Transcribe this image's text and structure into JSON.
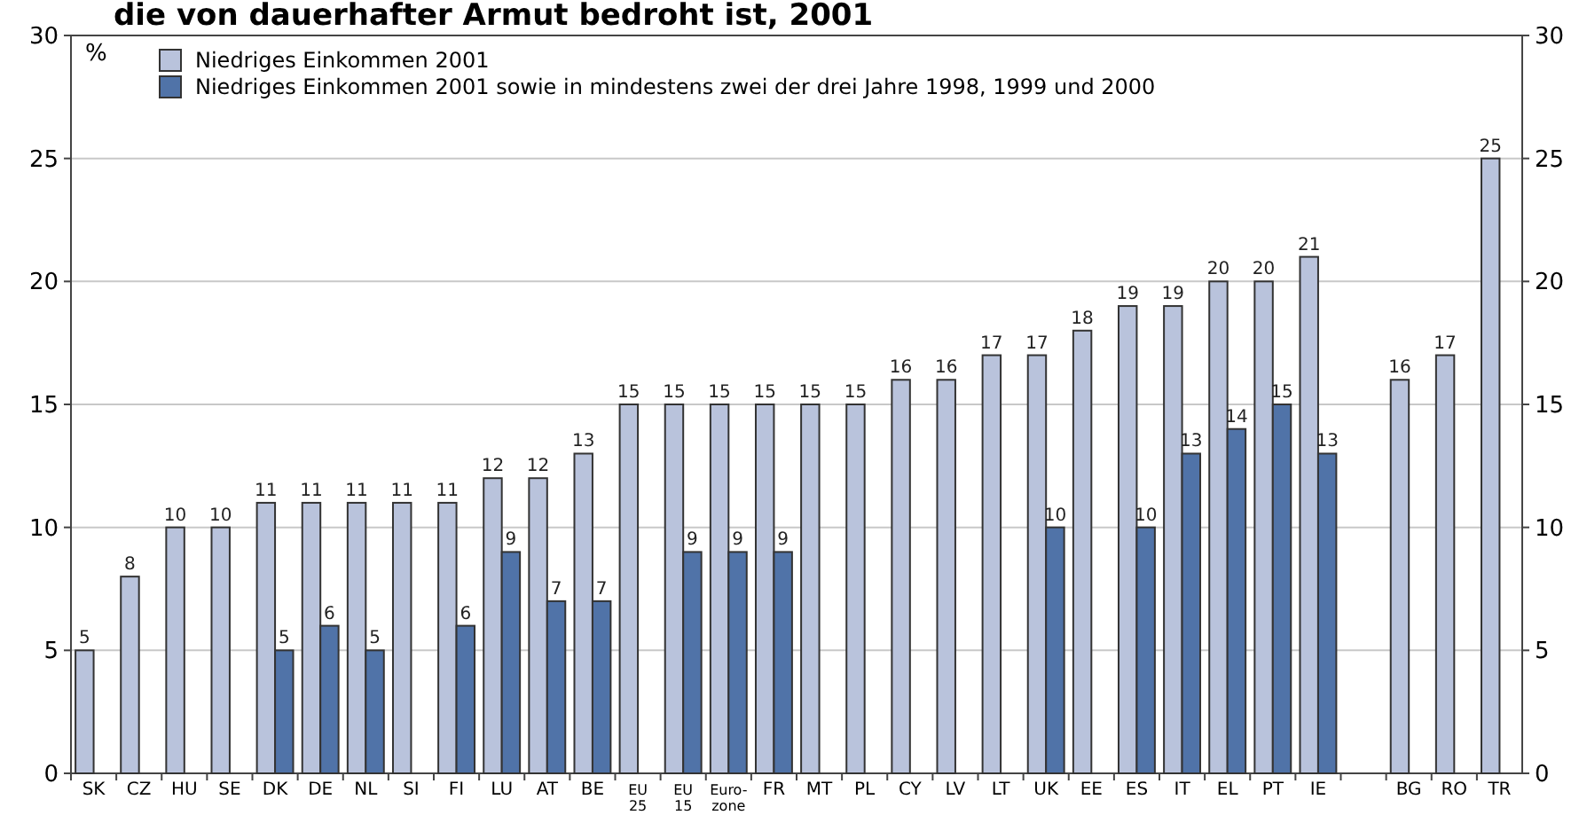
{
  "chart_data": {
    "type": "bar",
    "title": "die von dauerhafter Armut bedroht ist, 2001",
    "ylabel": "%",
    "categories": [
      "SK",
      "CZ",
      "HU",
      "SE",
      "DK",
      "DE",
      "NL",
      "SI",
      "FI",
      "LU",
      "AT",
      "BE",
      "EU 25",
      "EU 15",
      "Euro-zone",
      "FR",
      "MT",
      "PL",
      "CY",
      "LV",
      "LT",
      "UK",
      "EE",
      "ES",
      "IT",
      "EL",
      "PT",
      "IE",
      null,
      "BG",
      "RO",
      "TR"
    ],
    "series": [
      {
        "name": "Niedriges Einkommen 2001",
        "color": "#b9c3dc",
        "values": [
          5,
          8,
          10,
          10,
          11,
          11,
          11,
          11,
          11,
          12,
          12,
          13,
          15,
          15,
          15,
          15,
          15,
          15,
          16,
          16,
          17,
          17,
          18,
          19,
          19,
          20,
          20,
          21,
          null,
          16,
          17,
          25
        ]
      },
      {
        "name": "Niedriges Einkommen 2001 sowie in mindestens zwei der drei Jahre 1998, 1999 und 2000",
        "color": "#5073a8",
        "values": [
          null,
          null,
          null,
          null,
          5,
          6,
          5,
          null,
          6,
          9,
          7,
          7,
          null,
          9,
          9,
          9,
          null,
          null,
          null,
          null,
          null,
          10,
          null,
          10,
          13,
          14,
          15,
          13,
          null,
          null,
          null,
          null
        ]
      }
    ],
    "ylim": [
      0,
      30
    ],
    "yticks": [
      0,
      5,
      10,
      15,
      20,
      25,
      30
    ],
    "y2lim": [
      0,
      30
    ],
    "y2ticks": [
      0,
      5,
      10,
      15,
      20,
      25,
      30
    ],
    "grid": "y",
    "legend": "top left",
    "data_labels": true
  }
}
